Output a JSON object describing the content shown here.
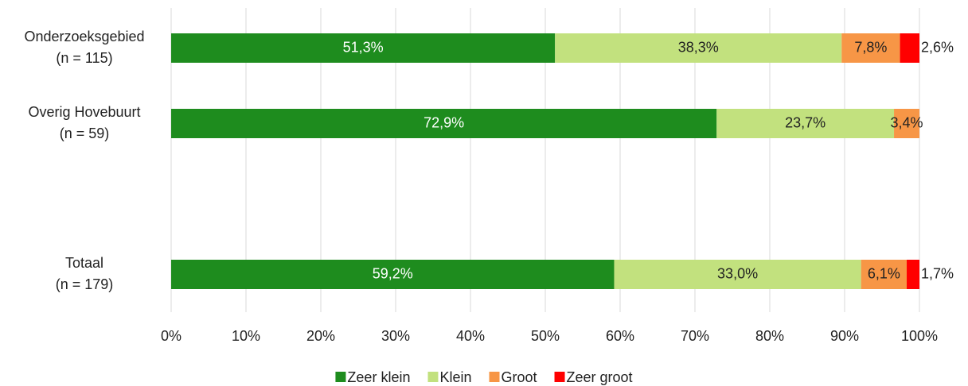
{
  "chart_data": {
    "type": "stacked_barh",
    "categories": [
      "Onderzoeksgebied\n(n = 115)",
      "Overig Hovebuurt\n(n = 59)",
      null,
      "Totaal\n(n = 179)"
    ],
    "series": [
      {
        "name": "Zeer klein",
        "color": "#1e8c1e",
        "values": [
          51.3,
          72.9,
          null,
          59.2
        ],
        "value_labels": [
          "51,3%",
          "72,9%",
          null,
          "59,2%"
        ]
      },
      {
        "name": "Klein",
        "color": "#c2e17e",
        "values": [
          38.3,
          23.7,
          null,
          33.0
        ],
        "value_labels": [
          "38,3%",
          "23,7%",
          null,
          "33,0%"
        ]
      },
      {
        "name": "Groot",
        "color": "#f79646",
        "values": [
          7.8,
          3.4,
          null,
          6.1
        ],
        "value_labels": [
          "7,8%",
          "3,4%",
          null,
          "6,1%"
        ]
      },
      {
        "name": "Zeer groot",
        "color": "#ff0000",
        "values": [
          2.6,
          null,
          null,
          1.7
        ],
        "value_labels": [
          "2,6%",
          null,
          null,
          "1,7%"
        ]
      }
    ],
    "xlim": [
      0,
      100
    ],
    "xticks": [
      {
        "value": 0,
        "label": "0%"
      },
      {
        "value": 10,
        "label": "10%"
      },
      {
        "value": 20,
        "label": "20%"
      },
      {
        "value": 30,
        "label": "30%"
      },
      {
        "value": 40,
        "label": "40%"
      },
      {
        "value": 50,
        "label": "50%"
      },
      {
        "value": 60,
        "label": "60%"
      },
      {
        "value": 70,
        "label": "70%"
      },
      {
        "value": 80,
        "label": "80%"
      },
      {
        "value": 90,
        "label": "90%"
      },
      {
        "value": 100,
        "label": "100%"
      }
    ],
    "grid": true,
    "legend": "bottom"
  }
}
